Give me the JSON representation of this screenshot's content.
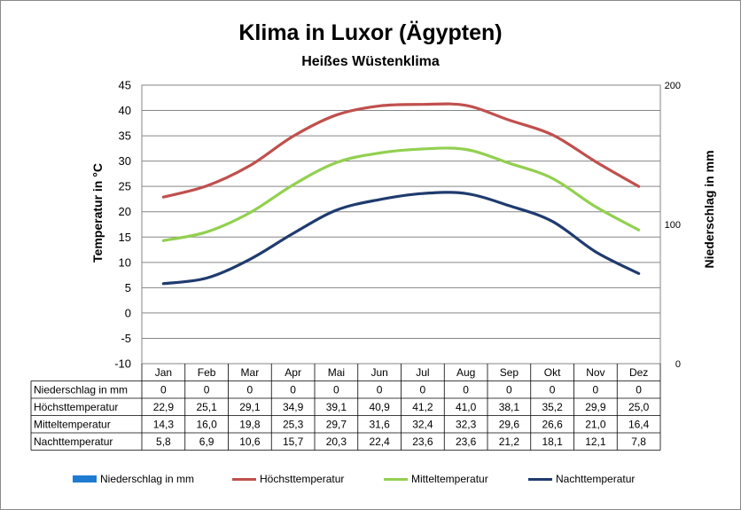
{
  "chart_data": {
    "type": "line",
    "title": "Klima in Luxor (Ägypten)",
    "subtitle": "Heißes Wüstenklima",
    "ylabel": "Temperatur in °C",
    "y2label": "Niederschlag in mm",
    "ylim": [
      -10,
      45
    ],
    "yticks": [
      "45",
      "40",
      "35",
      "30",
      "25",
      "20",
      "15",
      "10",
      "5",
      "0",
      "-5",
      "-10"
    ],
    "y2lim": [
      0,
      200
    ],
    "y2ticks": [
      "200",
      "100",
      "0"
    ],
    "grid": true,
    "legend_position": "bottom",
    "categories": [
      "Jan",
      "Feb",
      "Mar",
      "Apr",
      "Mai",
      "Jun",
      "Jul",
      "Aug",
      "Sep",
      "Okt",
      "Nov",
      "Dez"
    ],
    "series": [
      {
        "name": "Niederschlag in mm",
        "type": "bar",
        "axis": "right",
        "color": "#1f7bd1",
        "values": [
          0,
          0,
          0,
          0,
          0,
          0,
          0,
          0,
          0,
          0,
          0,
          0
        ],
        "labels": [
          "0",
          "0",
          "0",
          "0",
          "0",
          "0",
          "0",
          "0",
          "0",
          "0",
          "0",
          "0"
        ]
      },
      {
        "name": "Höchsttemperatur",
        "type": "line",
        "axis": "left",
        "color": "#c0504d",
        "values": [
          22.9,
          25.1,
          29.1,
          34.9,
          39.1,
          40.9,
          41.2,
          41.0,
          38.1,
          35.2,
          29.9,
          25.0
        ],
        "labels": [
          "22,9",
          "25,1",
          "29,1",
          "34,9",
          "39,1",
          "40,9",
          "41,2",
          "41,0",
          "38,1",
          "35,2",
          "29,9",
          "25,0"
        ]
      },
      {
        "name": "Mitteltemperatur",
        "type": "line",
        "axis": "left",
        "color": "#92d050",
        "values": [
          14.3,
          16.0,
          19.8,
          25.3,
          29.7,
          31.6,
          32.4,
          32.3,
          29.6,
          26.6,
          21.0,
          16.4
        ],
        "labels": [
          "14,3",
          "16,0",
          "19,8",
          "25,3",
          "29,7",
          "31,6",
          "32,4",
          "32,3",
          "29,6",
          "26,6",
          "21,0",
          "16,4"
        ]
      },
      {
        "name": "Nachttemperatur",
        "type": "line",
        "axis": "left",
        "color": "#1f3b6e",
        "values": [
          5.8,
          6.9,
          10.6,
          15.7,
          20.3,
          22.4,
          23.6,
          23.6,
          21.2,
          18.1,
          12.1,
          7.8
        ],
        "labels": [
          "5,8",
          "6,9",
          "10,6",
          "15,7",
          "20,3",
          "22,4",
          "23,6",
          "23,6",
          "21,2",
          "18,1",
          "12,1",
          "7,8"
        ]
      }
    ]
  }
}
